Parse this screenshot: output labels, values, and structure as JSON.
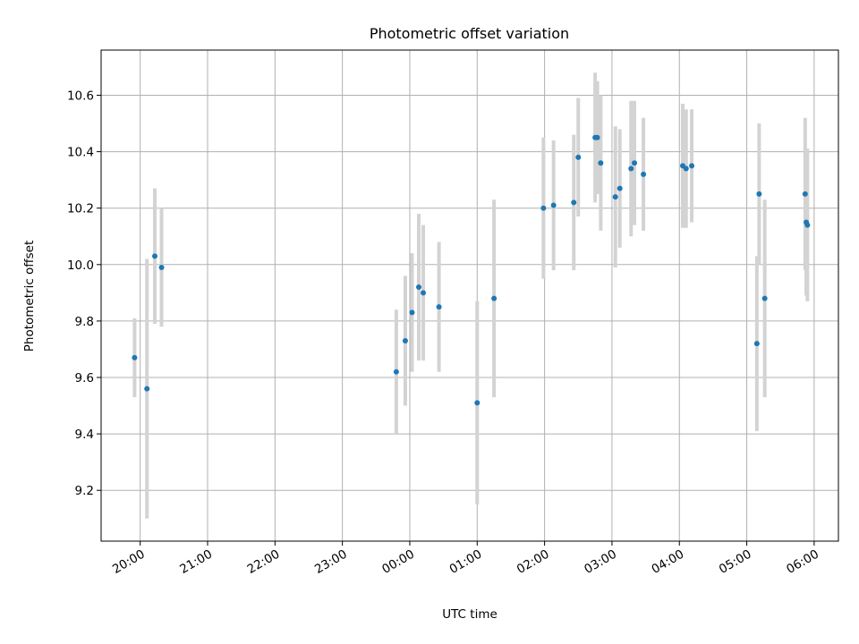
{
  "chart_data": {
    "type": "scatter",
    "title": "Photometric offset variation",
    "xlabel": "UTC time",
    "ylabel": "Photometric offset",
    "x_tick_labels": [
      "20:00",
      "21:00",
      "22:00",
      "23:00",
      "00:00",
      "01:00",
      "02:00",
      "03:00",
      "04:00",
      "05:00",
      "06:00"
    ],
    "x_ticks_hours": [
      0,
      1,
      2,
      3,
      4,
      5,
      6,
      7,
      8,
      9,
      10
    ],
    "xlim_hours_since_2000": [
      -0.58,
      10.36
    ],
    "y_tick_labels": [
      "9.2",
      "9.4",
      "9.6",
      "9.8",
      "10.0",
      "10.2",
      "10.4",
      "10.6"
    ],
    "y_ticks": [
      9.2,
      9.4,
      9.6,
      9.8,
      10.0,
      10.2,
      10.4,
      10.6
    ],
    "ylim": [
      9.02,
      10.76
    ],
    "grid": true,
    "series": [
      {
        "marker_color": "#1f77b4",
        "errorbar_color": "#d3d3d3",
        "points": [
          {
            "t": "19:55",
            "y": 9.67,
            "err": 0.14
          },
          {
            "t": "20:06",
            "y": 9.56,
            "err": 0.46
          },
          {
            "t": "20:13",
            "y": 10.03,
            "err": 0.24
          },
          {
            "t": "20:19",
            "y": 9.99,
            "err": 0.21
          },
          {
            "t": "23:48",
            "y": 9.62,
            "err": 0.22
          },
          {
            "t": "23:56",
            "y": 9.73,
            "err": 0.23
          },
          {
            "t": "00:02",
            "y": 9.83,
            "err": 0.21
          },
          {
            "t": "00:08",
            "y": 9.92,
            "err": 0.26
          },
          {
            "t": "00:12",
            "y": 9.9,
            "err": 0.24
          },
          {
            "t": "00:26",
            "y": 9.85,
            "err": 0.23
          },
          {
            "t": "01:00",
            "y": 9.51,
            "err": 0.36
          },
          {
            "t": "01:15",
            "y": 9.88,
            "err": 0.35
          },
          {
            "t": "01:59",
            "y": 10.2,
            "err": 0.25
          },
          {
            "t": "02:08",
            "y": 10.21,
            "err": 0.23
          },
          {
            "t": "02:26",
            "y": 10.22,
            "err": 0.24
          },
          {
            "t": "02:30",
            "y": 10.38,
            "err": 0.21
          },
          {
            "t": "02:45",
            "y": 10.45,
            "err": 0.23
          },
          {
            "t": "02:47",
            "y": 10.45,
            "err": 0.2
          },
          {
            "t": "02:50",
            "y": 10.36,
            "err": 0.24
          },
          {
            "t": "03:03",
            "y": 10.24,
            "err": 0.25
          },
          {
            "t": "03:07",
            "y": 10.27,
            "err": 0.21
          },
          {
            "t": "03:17",
            "y": 10.34,
            "err": 0.24
          },
          {
            "t": "03:20",
            "y": 10.36,
            "err": 0.22
          },
          {
            "t": "03:28",
            "y": 10.32,
            "err": 0.2
          },
          {
            "t": "04:03",
            "y": 10.35,
            "err": 0.22
          },
          {
            "t": "04:06",
            "y": 10.34,
            "err": 0.21
          },
          {
            "t": "04:11",
            "y": 10.35,
            "err": 0.2
          },
          {
            "t": "05:09",
            "y": 9.72,
            "err": 0.31
          },
          {
            "t": "05:11",
            "y": 10.25,
            "err": 0.25
          },
          {
            "t": "05:16",
            "y": 9.88,
            "err": 0.35
          },
          {
            "t": "05:52",
            "y": 10.25,
            "err": 0.27
          },
          {
            "t": "05:53",
            "y": 10.15,
            "err": 0.26
          },
          {
            "t": "05:54",
            "y": 10.14,
            "err": 0.27
          }
        ]
      }
    ]
  }
}
